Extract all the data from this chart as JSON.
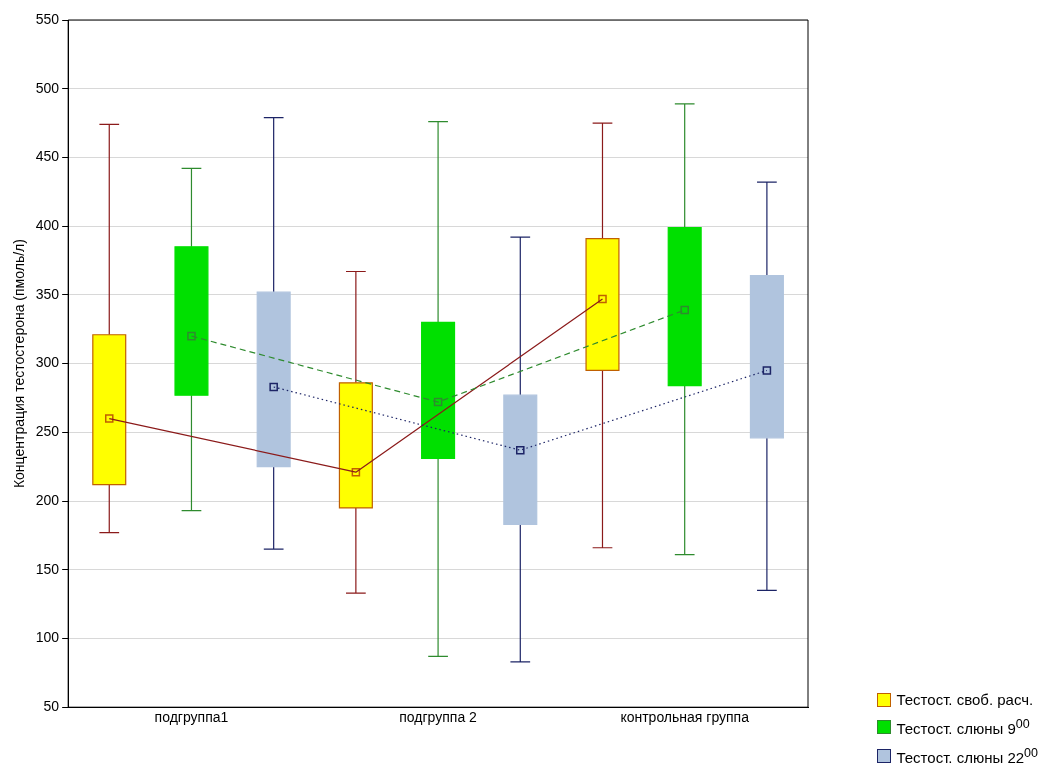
{
  "chart_data": {
    "type": "box",
    "ylabel": "Концентрация тестостерона (пмоль/л)",
    "categories": [
      "подгруппа1",
      "подгруппа 2",
      "контрольная группа"
    ],
    "ylim": [
      50,
      550
    ],
    "yticks": [
      50,
      100,
      150,
      200,
      250,
      300,
      350,
      400,
      450,
      500,
      550
    ],
    "grid": "y",
    "legend": "bottom right",
    "series": [
      {
        "name": "Тестост. своб. расч.",
        "color": "#ffff00",
        "boxes": [
          {
            "low": 177,
            "q1": 212,
            "median": 260,
            "q3": 321,
            "high": 474
          },
          {
            "low": 133,
            "q1": 195,
            "median": 221,
            "q3": 286,
            "high": 367
          },
          {
            "low": 166,
            "q1": 295,
            "median": 347,
            "q3": 391,
            "high": 475
          }
        ]
      },
      {
        "name": "Тестост. слюны 9$^{00}$",
        "color": "#00e000",
        "boxes": [
          {
            "low": 193,
            "q1": 277,
            "median": 320,
            "q3": 385,
            "high": 442
          },
          {
            "low": 87,
            "q1": 231,
            "median": 272,
            "q3": 330,
            "high": 476
          },
          {
            "low": 161,
            "q1": 284,
            "median": 339,
            "q3": 399,
            "high": 489
          }
        ]
      },
      {
        "name": "Тестост. слюны 22$^{00}$",
        "color": "#b0c4de",
        "boxes": [
          {
            "low": 165,
            "q1": 225,
            "median": 283,
            "q3": 352,
            "high": 479
          },
          {
            "low": 83,
            "q1": 183,
            "median": 237,
            "q3": 277,
            "high": 392
          },
          {
            "low": 135,
            "q1": 246,
            "median": 295,
            "q3": 364,
            "high": 432
          }
        ]
      },
      {
        "type": "line",
        "color": "#8b1a1a",
        "line_style": "solid",
        "values": [
          260,
          221,
          347
        ]
      },
      {
        "type": "line",
        "color": "#2e8b2e",
        "line_style": "dashed",
        "values": [
          320,
          272,
          339
        ]
      },
      {
        "type": "line",
        "color": "#1c2466",
        "line_style": "dotted",
        "values": [
          283,
          237,
          295
        ]
      }
    ]
  }
}
